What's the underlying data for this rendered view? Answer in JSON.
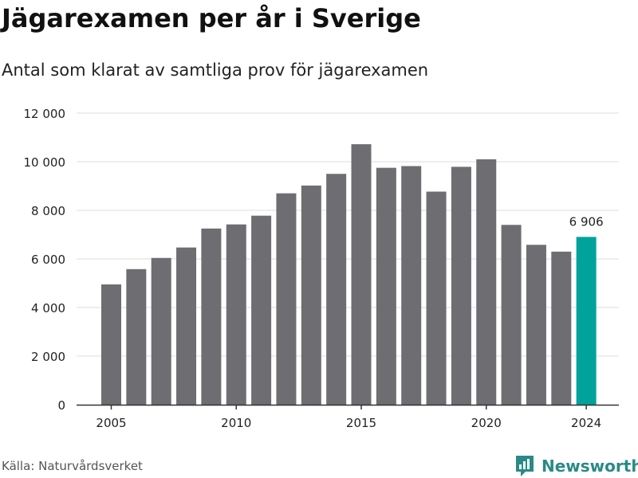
{
  "title": "Jägarexamen per år i Sverige",
  "subtitle": "Antal som klarat av samtliga prov för jägarexamen",
  "source": "Källa: Naturvårdsverket",
  "brand": {
    "name": "Newsworthy",
    "icon": "newsworthy-logo-icon",
    "color": "#2a8a87"
  },
  "colors": {
    "bar": "#6e6d72",
    "highlight": "#00a39b",
    "grid": "#dddddd",
    "axis": "#333333"
  },
  "chart_data": {
    "type": "bar",
    "categories": [
      "2005",
      "2006",
      "2007",
      "2008",
      "2009",
      "2010",
      "2011",
      "2012",
      "2013",
      "2014",
      "2015",
      "2016",
      "2017",
      "2018",
      "2019",
      "2020",
      "2021",
      "2022",
      "2023",
      "2024"
    ],
    "values": [
      4950,
      5580,
      6040,
      6470,
      7250,
      7420,
      7780,
      8700,
      9020,
      9500,
      10720,
      9750,
      9820,
      8770,
      9790,
      10100,
      7400,
      6580,
      6300,
      6906
    ],
    "highlight_index": 19,
    "data_labels": [
      {
        "index": 19,
        "text": "6 906"
      }
    ],
    "x_tick_labels": [
      "2005",
      "2010",
      "2015",
      "2020",
      "2024"
    ],
    "y_ticks": [
      0,
      2000,
      4000,
      6000,
      8000,
      10000,
      12000
    ],
    "y_tick_labels": [
      "0",
      "2 000",
      "4 000",
      "6 000",
      "8 000",
      "10 000",
      "12 000"
    ],
    "ylim": [
      0,
      12000
    ],
    "grid": true,
    "xlabel": "",
    "ylabel": ""
  }
}
